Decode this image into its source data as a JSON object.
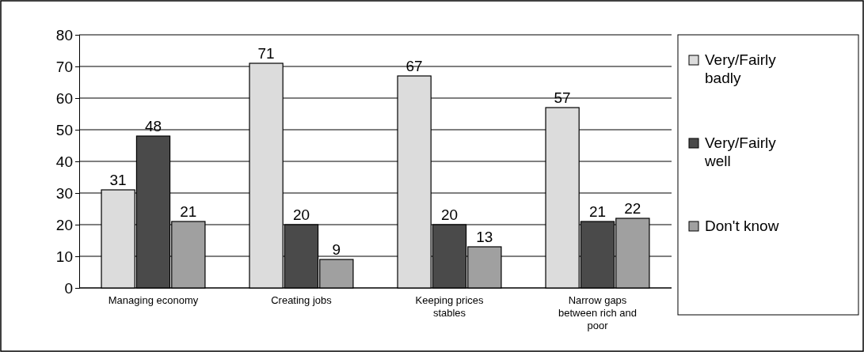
{
  "chart_data": {
    "type": "bar",
    "categories": [
      "Managing economy",
      "Creating jobs",
      "Keeping prices stables",
      "Narrow gaps between rich and poor"
    ],
    "series": [
      {
        "name": "Very/Fairly badly",
        "color": "#dcdcdc",
        "values": [
          31,
          71,
          67,
          57
        ]
      },
      {
        "name": "Very/Fairly well",
        "color": "#4a4a4a",
        "values": [
          48,
          20,
          20,
          21
        ]
      },
      {
        "name": "Don't know",
        "color": "#a0a0a0",
        "values": [
          21,
          9,
          13,
          22
        ]
      }
    ],
    "ylim": [
      0,
      80
    ],
    "yticks": [
      0,
      10,
      20,
      30,
      40,
      50,
      60,
      70,
      80
    ],
    "grid": "y",
    "legend": "right",
    "data_labels": true
  }
}
